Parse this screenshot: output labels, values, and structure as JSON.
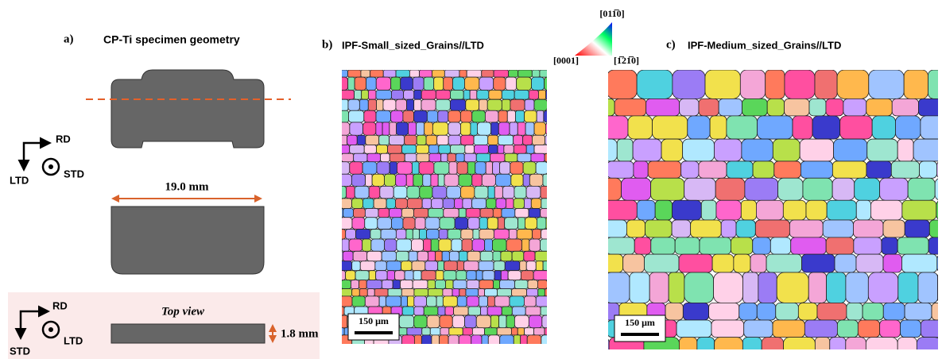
{
  "panel_a": {
    "label": "a)",
    "title": "CP-Ti specimen geometry",
    "axes_top": {
      "rd": "RD",
      "ltd": "LTD",
      "std": "STD"
    },
    "width_dim": "19.0 mm",
    "top_view": {
      "title": "Top view",
      "thickness_dim": "1.8 mm",
      "rd": "RD",
      "ltd": "LTD",
      "std": "STD"
    }
  },
  "panel_b": {
    "label": "b)",
    "title": "IPF-Small_sized_Grains//LTD",
    "scale_bar": "150 μm"
  },
  "ipf_legend": {
    "top": "[011̅0]",
    "left": "[0001]",
    "right": "[1̅21̅0]"
  },
  "panel_c": {
    "label": "c)",
    "title": "IPF-Medium_sized_Grains//LTD",
    "scale_bar": "150 μm"
  }
}
